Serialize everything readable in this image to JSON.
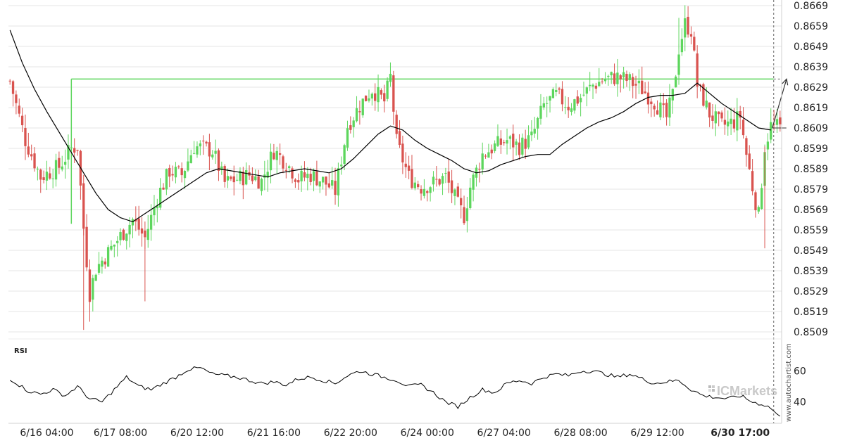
{
  "chart_data": [
    {
      "type": "candlestick",
      "instrument_price_range": [
        0.8504,
        0.8672
      ],
      "y_ticks": [
        "0.8669",
        "0.8659",
        "0.8649",
        "0.8639",
        "0.8629",
        "0.8619",
        "0.8609",
        "0.8599",
        "0.8589",
        "0.8579",
        "0.8569",
        "0.8559",
        "0.8549",
        "0.8539",
        "0.8529",
        "0.8519",
        "0.8509"
      ],
      "x_ticks": [
        "6/16 04:00",
        "6/17 08:00",
        "6/20 12:00",
        "6/21 16:00",
        "6/22 20:00",
        "6/24 00:00",
        "6/27 04:00",
        "6/28 08:00",
        "6/29 12:00",
        "6/30 17:00"
      ],
      "colors": {
        "up": "#5dd65d",
        "down": "#d9534f",
        "level": "#5dd65d",
        "ma": "#000000",
        "grid": "#e6e6e6"
      },
      "resistance_level": 0.8633,
      "current_price_approx": 0.8609,
      "forecast_target": 0.8633,
      "moving_average_key_values": [
        {
          "x": 0,
          "y": 0.8657
        },
        {
          "x": 4,
          "y": 0.8641
        },
        {
          "x": 8,
          "y": 0.8628
        },
        {
          "x": 12,
          "y": 0.8617
        },
        {
          "x": 16,
          "y": 0.8607
        },
        {
          "x": 20,
          "y": 0.8597
        },
        {
          "x": 24,
          "y": 0.8587
        },
        {
          "x": 28,
          "y": 0.8577
        },
        {
          "x": 32,
          "y": 0.8569
        },
        {
          "x": 36,
          "y": 0.8565
        },
        {
          "x": 40,
          "y": 0.8563
        },
        {
          "x": 44,
          "y": 0.8567
        },
        {
          "x": 48,
          "y": 0.8571
        },
        {
          "x": 52,
          "y": 0.8575
        },
        {
          "x": 56,
          "y": 0.8579
        },
        {
          "x": 60,
          "y": 0.8583
        },
        {
          "x": 64,
          "y": 0.8587
        },
        {
          "x": 68,
          "y": 0.8589
        },
        {
          "x": 72,
          "y": 0.8588
        },
        {
          "x": 76,
          "y": 0.8587
        },
        {
          "x": 80,
          "y": 0.8586
        },
        {
          "x": 84,
          "y": 0.8585
        },
        {
          "x": 88,
          "y": 0.8587
        },
        {
          "x": 92,
          "y": 0.8588
        },
        {
          "x": 96,
          "y": 0.8589
        },
        {
          "x": 100,
          "y": 0.8588
        },
        {
          "x": 104,
          "y": 0.8587
        },
        {
          "x": 108,
          "y": 0.8589
        },
        {
          "x": 112,
          "y": 0.8594
        },
        {
          "x": 116,
          "y": 0.86
        },
        {
          "x": 120,
          "y": 0.8606
        },
        {
          "x": 124,
          "y": 0.861
        },
        {
          "x": 128,
          "y": 0.8608
        },
        {
          "x": 132,
          "y": 0.8603
        },
        {
          "x": 136,
          "y": 0.8599
        },
        {
          "x": 140,
          "y": 0.8596
        },
        {
          "x": 144,
          "y": 0.8593
        },
        {
          "x": 148,
          "y": 0.8589
        },
        {
          "x": 152,
          "y": 0.8587
        },
        {
          "x": 156,
          "y": 0.8588
        },
        {
          "x": 160,
          "y": 0.8591
        },
        {
          "x": 164,
          "y": 0.8593
        },
        {
          "x": 168,
          "y": 0.8595
        },
        {
          "x": 172,
          "y": 0.8596
        },
        {
          "x": 176,
          "y": 0.8596
        },
        {
          "x": 180,
          "y": 0.8601
        },
        {
          "x": 184,
          "y": 0.8605
        },
        {
          "x": 188,
          "y": 0.8609
        },
        {
          "x": 192,
          "y": 0.8612
        },
        {
          "x": 196,
          "y": 0.8614
        },
        {
          "x": 200,
          "y": 0.8617
        },
        {
          "x": 204,
          "y": 0.8621
        },
        {
          "x": 208,
          "y": 0.8624
        },
        {
          "x": 212,
          "y": 0.8625
        },
        {
          "x": 216,
          "y": 0.8625
        },
        {
          "x": 220,
          "y": 0.8626
        },
        {
          "x": 224,
          "y": 0.8631
        },
        {
          "x": 228,
          "y": 0.8626
        },
        {
          "x": 232,
          "y": 0.8621
        },
        {
          "x": 236,
          "y": 0.8617
        },
        {
          "x": 240,
          "y": 0.8613
        },
        {
          "x": 244,
          "y": 0.8609
        },
        {
          "x": 248,
          "y": 0.8608
        }
      ],
      "candles_count": 252,
      "indicator": {
        "label": "RSI",
        "y_ticks": [
          "60",
          "40"
        ],
        "y_range": [
          28,
          68
        ],
        "key_values": [
          {
            "x": 0,
            "y": 55
          },
          {
            "x": 6,
            "y": 47
          },
          {
            "x": 10,
            "y": 45
          },
          {
            "x": 14,
            "y": 48
          },
          {
            "x": 18,
            "y": 44
          },
          {
            "x": 22,
            "y": 50
          },
          {
            "x": 26,
            "y": 42
          },
          {
            "x": 30,
            "y": 40
          },
          {
            "x": 34,
            "y": 48
          },
          {
            "x": 38,
            "y": 56
          },
          {
            "x": 42,
            "y": 50
          },
          {
            "x": 46,
            "y": 48
          },
          {
            "x": 50,
            "y": 52
          },
          {
            "x": 54,
            "y": 56
          },
          {
            "x": 58,
            "y": 61
          },
          {
            "x": 62,
            "y": 62
          },
          {
            "x": 66,
            "y": 58
          },
          {
            "x": 70,
            "y": 57
          },
          {
            "x": 74,
            "y": 56
          },
          {
            "x": 78,
            "y": 54
          },
          {
            "x": 82,
            "y": 52
          },
          {
            "x": 86,
            "y": 53
          },
          {
            "x": 90,
            "y": 51
          },
          {
            "x": 94,
            "y": 55
          },
          {
            "x": 98,
            "y": 56
          },
          {
            "x": 102,
            "y": 54
          },
          {
            "x": 106,
            "y": 52
          },
          {
            "x": 110,
            "y": 57
          },
          {
            "x": 114,
            "y": 60
          },
          {
            "x": 118,
            "y": 58
          },
          {
            "x": 122,
            "y": 56
          },
          {
            "x": 126,
            "y": 54
          },
          {
            "x": 130,
            "y": 50
          },
          {
            "x": 134,
            "y": 51
          },
          {
            "x": 138,
            "y": 46
          },
          {
            "x": 142,
            "y": 40
          },
          {
            "x": 146,
            "y": 37
          },
          {
            "x": 150,
            "y": 43
          },
          {
            "x": 154,
            "y": 48
          },
          {
            "x": 158,
            "y": 46
          },
          {
            "x": 162,
            "y": 52
          },
          {
            "x": 166,
            "y": 54
          },
          {
            "x": 170,
            "y": 52
          },
          {
            "x": 174,
            "y": 56
          },
          {
            "x": 178,
            "y": 58
          },
          {
            "x": 182,
            "y": 57
          },
          {
            "x": 186,
            "y": 60
          },
          {
            "x": 190,
            "y": 60
          },
          {
            "x": 194,
            "y": 58
          },
          {
            "x": 198,
            "y": 56
          },
          {
            "x": 202,
            "y": 58
          },
          {
            "x": 206,
            "y": 55
          },
          {
            "x": 210,
            "y": 52
          },
          {
            "x": 214,
            "y": 53
          },
          {
            "x": 218,
            "y": 54
          },
          {
            "x": 222,
            "y": 48
          },
          {
            "x": 226,
            "y": 44
          },
          {
            "x": 230,
            "y": 43
          },
          {
            "x": 234,
            "y": 42
          },
          {
            "x": 238,
            "y": 44
          },
          {
            "x": 242,
            "y": 40
          },
          {
            "x": 246,
            "y": 38
          },
          {
            "x": 248,
            "y": 36
          },
          {
            "x": 251,
            "y": 30
          }
        ]
      },
      "watermark": "www.autochartist.com",
      "brand": "ICMarkets"
    }
  ]
}
